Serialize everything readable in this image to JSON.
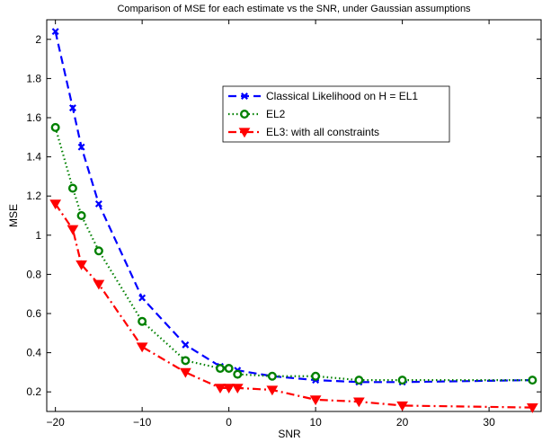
{
  "chart_data": {
    "type": "line",
    "title": "Comparison of MSE for each estimate vs the SNR, under Gaussian assumptions",
    "xlabel": "SNR",
    "ylabel": "MSE",
    "xlim": [
      -21,
      36
    ],
    "ylim": [
      0.1,
      2.1
    ],
    "xticks": [
      -20,
      -10,
      0,
      10,
      20,
      30
    ],
    "yticks": [
      0.2,
      0.4,
      0.6,
      0.8,
      1,
      1.2,
      1.4,
      1.6,
      1.8,
      2
    ],
    "grid": false,
    "legend_position": "upper-right",
    "series": [
      {
        "name": "Classical Likelihood on H = EL1",
        "color": "#0000ff",
        "line_style": "dashed",
        "marker": "x",
        "x": [
          -20,
          -18,
          -17,
          -15,
          -10,
          -5,
          -1,
          0,
          1,
          5,
          10,
          15,
          20,
          35
        ],
        "y": [
          2.04,
          1.65,
          1.45,
          1.16,
          0.68,
          0.44,
          0.33,
          0.32,
          0.31,
          0.28,
          0.26,
          0.25,
          0.25,
          0.26
        ]
      },
      {
        "name": "EL2",
        "color": "#008000",
        "line_style": "dotted",
        "marker": "circle",
        "x": [
          -20,
          -18,
          -17,
          -15,
          -10,
          -5,
          -1,
          0,
          1,
          5,
          10,
          15,
          20,
          35
        ],
        "y": [
          1.55,
          1.24,
          1.1,
          0.92,
          0.56,
          0.36,
          0.32,
          0.32,
          0.29,
          0.28,
          0.28,
          0.26,
          0.26,
          0.26
        ]
      },
      {
        "name": "EL3: with all constraints",
        "color": "#ff0000",
        "line_style": "dashdot",
        "marker": "triangle-down",
        "x": [
          -20,
          -18,
          -17,
          -15,
          -10,
          -5,
          -1,
          0,
          1,
          5,
          10,
          15,
          20,
          35
        ],
        "y": [
          1.16,
          1.03,
          0.85,
          0.75,
          0.43,
          0.3,
          0.22,
          0.22,
          0.22,
          0.21,
          0.16,
          0.15,
          0.13,
          0.12
        ]
      }
    ]
  }
}
